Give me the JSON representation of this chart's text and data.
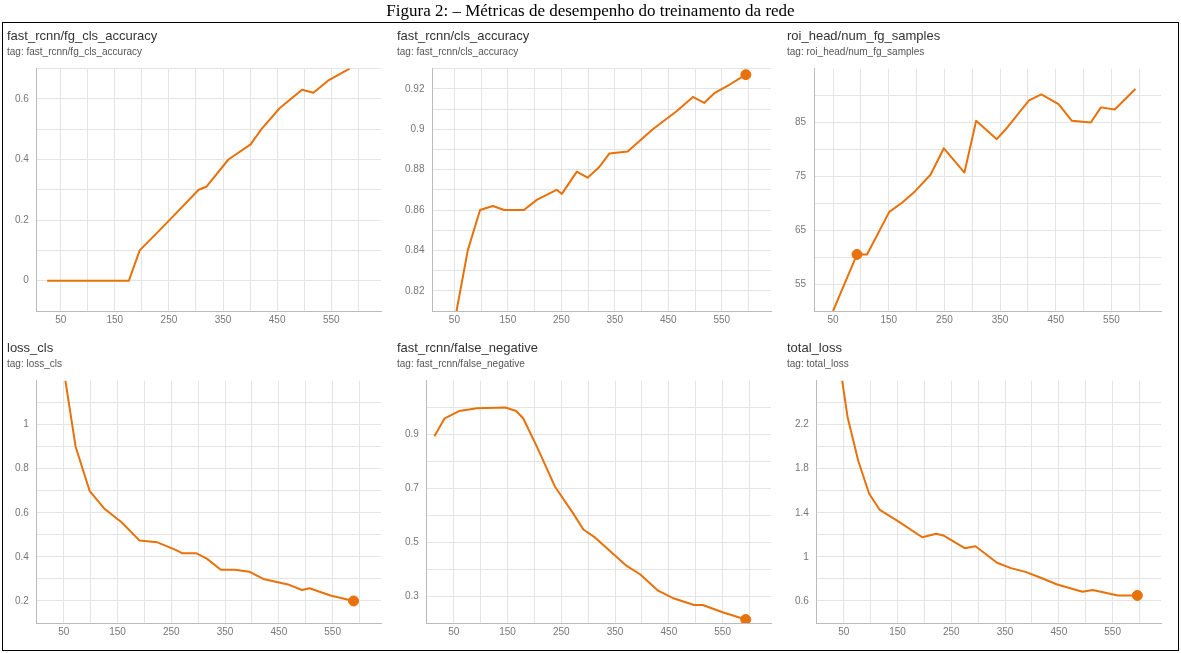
{
  "chart_data": [
    {
      "type": "line",
      "title": "fast_rcnn/fg_cls_accuracy",
      "subtitle": "tag: fast_rcnn/fg_cls_accuracy",
      "annotations": [
        "Figura 2: – Métricas de desempenho do treinamento da rede"
      ],
      "grid": true,
      "marker": "none",
      "line_style": "solid",
      "xlim": [
        6,
        642
      ],
      "ylim": [
        -0.1,
        0.7
      ],
      "xticks": [
        50,
        {
          "value": 100,
          "label": null
        },
        150,
        {
          "value": 200,
          "label": null
        },
        250,
        {
          "value": 300,
          "label": null
        },
        350,
        {
          "value": 400,
          "label": null
        },
        450,
        {
          "value": 500,
          "label": null
        },
        550,
        {
          "value": 600,
          "label": null
        }
      ],
      "yticks": [
        {
          "value": -0.1,
          "label": null
        },
        0,
        {
          "value": 0.1,
          "label": null
        },
        0.2,
        {
          "value": 0.3,
          "label": null
        },
        0.4,
        {
          "value": 0.5,
          "label": null
        },
        0.6,
        {
          "value": 0.7,
          "label": null
        }
      ],
      "series": [
        {
          "color": "#e8710a",
          "x": [
            25,
            60,
            100,
            140,
            176,
            196,
            251,
            305,
            319,
            360,
            401,
            421,
            455,
            496,
            517,
            544,
            564,
            584
          ],
          "values": [
            0,
            0,
            0,
            0,
            0,
            0.1,
            0.2,
            0.3,
            0.31,
            0.4,
            0.45,
            0.5,
            0.57,
            0.63,
            0.62,
            0.66,
            0.68,
            0.7
          ]
        }
      ]
    },
    {
      "type": "line",
      "title": "fast_rcnn/cls_accuracy",
      "subtitle": "tag: fast_rcnn/cls_accuracy",
      "grid": true,
      "marker": "none",
      "line_style": "solid",
      "xlim": [
        9,
        642
      ],
      "ylim": [
        0.81,
        0.93
      ],
      "xticks": [
        50,
        {
          "value": 100,
          "label": null
        },
        150,
        {
          "value": 200,
          "label": null
        },
        250,
        {
          "value": 300,
          "label": null
        },
        350,
        {
          "value": 400,
          "label": null
        },
        450,
        {
          "value": 500,
          "label": null
        },
        550,
        {
          "value": 600,
          "label": null
        }
      ],
      "yticks": [
        {
          "value": 0.81,
          "label": null
        },
        0.82,
        {
          "value": 0.83,
          "label": null
        },
        0.84,
        {
          "value": 0.85,
          "label": null
        },
        0.86,
        {
          "value": 0.87,
          "label": null
        },
        0.88,
        {
          "value": 0.89,
          "label": null
        },
        0.9,
        {
          "value": 0.91,
          "label": null
        },
        0.92,
        {
          "value": 0.93,
          "label": null
        }
      ],
      "series": [
        {
          "color": "#e8710a",
          "x": [
            54,
            75,
            98,
            122,
            143,
            180,
            204,
            241,
            251,
            279,
            299,
            320,
            340,
            374,
            421,
            466,
            496,
            517,
            537,
            564,
            595
          ],
          "values": [
            0.81,
            0.84,
            0.86,
            0.862,
            0.86,
            0.86,
            0.865,
            0.87,
            0.868,
            0.879,
            0.876,
            0.881,
            0.888,
            0.889,
            0.9,
            0.909,
            0.916,
            0.913,
            0.918,
            0.922,
            0.927
          ]
        },
        {
          "type": "scatter",
          "marker": "circle",
          "color": "#e8710a",
          "x": [
            595
          ],
          "values": [
            0.927
          ]
        }
      ]
    },
    {
      "type": "line",
      "title": "roi_head/num_fg_samples",
      "subtitle": "tag: roi_head/num_fg_samples",
      "grid": true,
      "marker": "none",
      "line_style": "solid",
      "xlim": [
        16,
        639
      ],
      "ylim": [
        50,
        95
      ],
      "xticks": [
        50,
        {
          "value": 100,
          "label": null
        },
        150,
        {
          "value": 200,
          "label": null
        },
        250,
        {
          "value": 300,
          "label": null
        },
        350,
        {
          "value": 400,
          "label": null
        },
        450,
        {
          "value": 500,
          "label": null
        },
        550,
        {
          "value": 600,
          "label": null
        }
      ],
      "yticks": [
        55,
        {
          "value": 60,
          "label": null
        },
        65,
        {
          "value": 70,
          "label": null
        },
        75,
        {
          "value": 80,
          "label": null
        },
        85,
        {
          "value": 90,
          "label": null
        }
      ],
      "series": [
        {
          "color": "#e8710a",
          "x": [
            50,
            93,
            111,
            151,
            175,
            197,
            225,
            249,
            286,
            307,
            344,
            359,
            402,
            424,
            455,
            479,
            513,
            531,
            556,
            593
          ],
          "values": [
            50,
            60.5,
            60.5,
            68.4,
            70.2,
            72.2,
            75.3,
            80.2,
            75.7,
            85.3,
            81.9,
            83.6,
            89.1,
            90.2,
            88.4,
            85.3,
            85,
            87.8,
            87.4,
            91.2
          ]
        },
        {
          "type": "scatter",
          "marker": "circle",
          "color": "#e8710a",
          "x": [
            93
          ],
          "values": [
            60.5
          ]
        }
      ]
    },
    {
      "type": "line",
      "title": "loss_cls",
      "subtitle": "tag: loss_cls",
      "grid": true,
      "marker": "none",
      "line_style": "solid",
      "xlim": [
        0,
        640
      ],
      "ylim": [
        0.1,
        1.2
      ],
      "xticks": [
        50,
        {
          "value": 100,
          "label": null
        },
        150,
        {
          "value": 200,
          "label": null
        },
        250,
        {
          "value": 300,
          "label": null
        },
        350,
        {
          "value": 400,
          "label": null
        },
        450,
        {
          "value": 500,
          "label": null
        },
        550,
        {
          "value": 600,
          "label": null
        }
      ],
      "yticks": [
        0.2,
        {
          "value": 0.3,
          "label": null
        },
        0.4,
        {
          "value": 0.5,
          "label": null
        },
        0.6,
        {
          "value": 0.7,
          "label": null
        },
        0.8,
        {
          "value": 0.9,
          "label": null
        },
        1,
        {
          "value": 1.1,
          "label": null
        }
      ],
      "series": [
        {
          "color": "#e8710a",
          "x": [
            53,
            72,
            98,
            125,
            158,
            191,
            224,
            257,
            270,
            296,
            316,
            342,
            368,
            395,
            421,
            467,
            493,
            507,
            546,
            589
          ],
          "values": [
            1.2,
            0.9,
            0.7,
            0.62,
            0.556,
            0.474,
            0.466,
            0.433,
            0.417,
            0.417,
            0.392,
            0.342,
            0.342,
            0.333,
            0.3,
            0.275,
            0.25,
            0.258,
            0.225,
            0.2
          ]
        },
        {
          "type": "scatter",
          "marker": "circle",
          "color": "#e8710a",
          "x": [
            589
          ],
          "values": [
            0.2
          ]
        }
      ]
    },
    {
      "type": "line",
      "title": "fast_rcnn/false_negative",
      "subtitle": "tag: fast_rcnn/false_negative",
      "grid": true,
      "marker": "none",
      "line_style": "solid",
      "xlim": [
        0,
        640
      ],
      "ylim": [
        0.2,
        1.1
      ],
      "xticks": [
        50,
        {
          "value": 100,
          "label": null
        },
        150,
        {
          "value": 200,
          "label": null
        },
        250,
        {
          "value": 300,
          "label": null
        },
        350,
        {
          "value": 400,
          "label": null
        },
        450,
        {
          "value": 500,
          "label": null
        },
        550,
        {
          "value": 600,
          "label": null
        }
      ],
      "yticks": [
        0.3,
        {
          "value": 0.4,
          "label": null
        },
        0.5,
        {
          "value": 0.6,
          "label": null
        },
        0.7,
        {
          "value": 0.8,
          "label": null
        },
        0.9,
        {
          "value": 1,
          "label": null
        }
      ],
      "series": [
        {
          "color": "#e8710a",
          "x": [
            14,
            33,
            60,
            93,
            146,
            166,
            179,
            205,
            238,
            272,
            291,
            311,
            371,
            397,
            430,
            457,
            497,
            513,
            550,
            593
          ],
          "values": [
            0.893,
            0.96,
            0.987,
            0.997,
            1,
            0.987,
            0.96,
            0.853,
            0.707,
            0.607,
            0.547,
            0.52,
            0.413,
            0.38,
            0.32,
            0.293,
            0.267,
            0.267,
            0.24,
            0.213
          ]
        },
        {
          "type": "scatter",
          "marker": "circle",
          "color": "#e8710a",
          "x": [
            593
          ],
          "values": [
            0.213
          ]
        }
      ]
    },
    {
      "type": "line",
      "title": "total_loss",
      "subtitle": "tag: total_loss",
      "grid": true,
      "marker": "none",
      "line_style": "solid",
      "xlim": [
        0,
        640
      ],
      "ylim": [
        0.4,
        2.6
      ],
      "xticks": [
        50,
        {
          "value": 100,
          "label": null
        },
        150,
        {
          "value": 200,
          "label": null
        },
        250,
        {
          "value": 300,
          "label": null
        },
        350,
        {
          "value": 400,
          "label": null
        },
        450,
        {
          "value": 500,
          "label": null
        },
        550,
        {
          "value": 600,
          "label": null
        }
      ],
      "yticks": [
        0.6,
        {
          "value": 0.8,
          "label": null
        },
        1,
        {
          "value": 1.2,
          "label": null
        },
        1.4,
        {
          "value": 1.6,
          "label": null
        },
        1.8,
        {
          "value": 2,
          "label": null
        },
        2.2,
        {
          "value": 2.4,
          "label": null
        }
      ],
      "series": [
        {
          "color": "#e8710a",
          "x": [
            47,
            57,
            77,
            97,
            117,
            150,
            196,
            222,
            235,
            275,
            295,
            335,
            361,
            388,
            414,
            447,
            494,
            513,
            560,
            596
          ],
          "values": [
            2.6,
            2.27,
            1.87,
            1.575,
            1.426,
            1.327,
            1.178,
            1.21,
            1.195,
            1.079,
            1.096,
            0.947,
            0.898,
            0.864,
            0.815,
            0.749,
            0.683,
            0.699,
            0.65,
            0.65
          ]
        },
        {
          "type": "scatter",
          "marker": "circle",
          "color": "#e8710a",
          "x": [
            596
          ],
          "values": [
            0.65
          ]
        }
      ]
    }
  ]
}
